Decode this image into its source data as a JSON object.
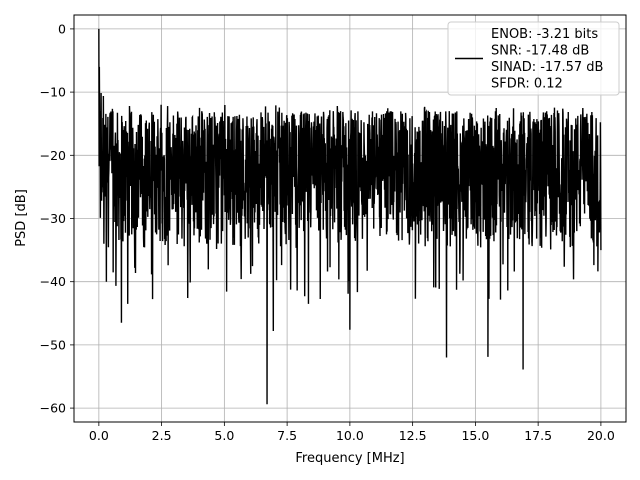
{
  "chart_data": {
    "type": "line",
    "xlabel": "Frequency [MHz]",
    "ylabel": "PSD [dB]",
    "xlim": [
      -0.99,
      21.0
    ],
    "ylim": [
      -62.2,
      2.2
    ],
    "grid": true,
    "xticks": [
      0.0,
      2.5,
      5.0,
      7.5,
      10.0,
      12.5,
      15.0,
      17.5,
      20.0
    ],
    "xtick_labels": [
      "0.0",
      "2.5",
      "5.0",
      "7.5",
      "10.0",
      "12.5",
      "15.0",
      "17.5",
      "20.0"
    ],
    "yticks": [
      0,
      -10,
      -20,
      -30,
      -40,
      -50,
      -60
    ],
    "ytick_labels": [
      "0",
      "−10",
      "−20",
      "−30",
      "−40",
      "−50",
      "−60"
    ],
    "legend": {
      "placement": "top-right",
      "lines": [
        "ENOB: -3.21 bits",
        "SNR: -17.48 dB",
        "SINAD: -17.57 dB",
        "SFDR: 0.12"
      ]
    },
    "series": [
      {
        "color": "#000000",
        "noise_floor_range_db": [
          -35,
          -13
        ],
        "x": [
          0.0,
          0.02,
          0.05,
          0.1,
          0.15,
          0.2,
          0.3,
          0.9,
          1.15,
          6.7,
          6.95,
          8.35,
          10.0,
          13.85,
          15.5,
          16.9,
          20.0
        ],
        "y": [
          0.0,
          -6.0,
          -13.0,
          -20.0,
          -25.0,
          -34.0,
          -40.0,
          -46.5,
          -43.5,
          -59.4,
          -47.8,
          -43.5,
          -47.6,
          -52.0,
          -51.9,
          -53.9,
          -35.0
        ]
      }
    ]
  }
}
